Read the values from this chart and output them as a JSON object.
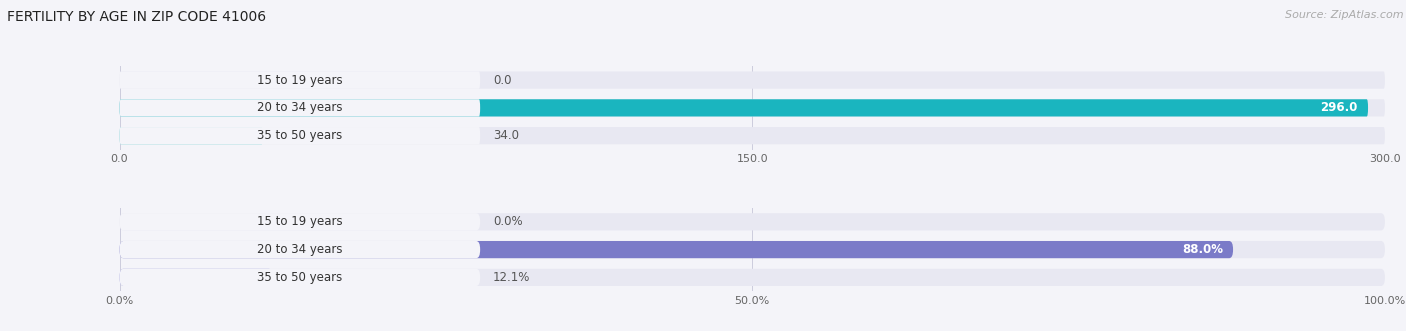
{
  "title": "FERTILITY BY AGE IN ZIP CODE 41006",
  "source": "Source: ZipAtlas.com",
  "top_chart": {
    "categories": [
      "15 to 19 years",
      "20 to 34 years",
      "35 to 50 years"
    ],
    "values": [
      0.0,
      296.0,
      34.0
    ],
    "max_value": 300.0,
    "tick_values": [
      0.0,
      150.0,
      300.0
    ],
    "tick_labels": [
      "0.0",
      "150.0",
      "300.0"
    ],
    "bar_fg_colors": [
      "#5ecece",
      "#1ab5bf",
      "#5ecece"
    ],
    "bar_bg_color": "#e8e8f2",
    "label_bg_color": "#f4f4f9",
    "value_label_colors": [
      "#555555",
      "#ffffff",
      "#555555"
    ],
    "value_labels": [
      "0.0",
      "296.0",
      "34.0"
    ]
  },
  "bottom_chart": {
    "categories": [
      "15 to 19 years",
      "20 to 34 years",
      "35 to 50 years"
    ],
    "values": [
      0.0,
      88.0,
      12.1
    ],
    "max_value": 100.0,
    "tick_values": [
      0.0,
      50.0,
      100.0
    ],
    "tick_labels": [
      "0.0%",
      "50.0%",
      "100.0%"
    ],
    "bar_fg_colors": [
      "#9999dd",
      "#7b7bc8",
      "#9999dd"
    ],
    "bar_bg_color": "#e8e8f2",
    "label_bg_color": "#f4f4f9",
    "value_label_colors": [
      "#555555",
      "#ffffff",
      "#555555"
    ],
    "value_labels": [
      "0.0%",
      "88.0%",
      "12.1%"
    ]
  },
  "fig_bg_color": "#f4f4f9",
  "chart_bg_color": "#f4f4f9",
  "title_fontsize": 10,
  "source_fontsize": 8,
  "label_fontsize": 8.5,
  "value_fontsize": 8.5,
  "bar_height": 0.62
}
